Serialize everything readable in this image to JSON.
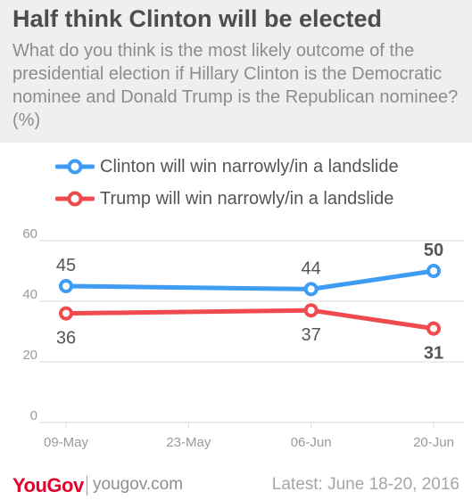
{
  "header": {
    "title": "Half think Clinton will be elected",
    "subtitle": "What do you think is the most likely outcome of the presidential election if Hillary Clinton is the Democratic nominee and Donald Trump is the Republican nominee? (%)"
  },
  "colors": {
    "clinton": "#3f9cf5",
    "trump": "#ef4b4f",
    "grid": "#d9d9d9",
    "axis_text": "#9a9a9a",
    "label_text": "#555555"
  },
  "chart_data": {
    "type": "line",
    "x": [
      "09-May",
      "23-May",
      "06-Jun",
      "20-Jun"
    ],
    "x_tick_labels": [
      "09-May",
      "23-May",
      "06-Jun",
      "20-Jun"
    ],
    "ylim": [
      0,
      60
    ],
    "y_ticks": [
      "0",
      "20",
      "40",
      "60"
    ],
    "grid": true,
    "legend_position": "top",
    "series": [
      {
        "name": "Clinton will win narrowly/in a landslide",
        "color": "#3f9cf5",
        "points": [
          {
            "x": "09-May",
            "y": 45,
            "label": "45"
          },
          {
            "x": "06-Jun",
            "y": 44,
            "label": "44"
          },
          {
            "x": "20-Jun",
            "y": 50,
            "label": "50"
          }
        ]
      },
      {
        "name": "Trump will win narrowly/in a landslide",
        "color": "#ef4b4f",
        "points": [
          {
            "x": "09-May",
            "y": 36,
            "label": "36"
          },
          {
            "x": "06-Jun",
            "y": 37,
            "label": "37"
          },
          {
            "x": "20-Jun",
            "y": 31,
            "label": "31"
          }
        ]
      }
    ]
  },
  "footer": {
    "logo": "YouGov",
    "site": "yougov.com",
    "latest": "Latest: June 18-20, 2016"
  }
}
